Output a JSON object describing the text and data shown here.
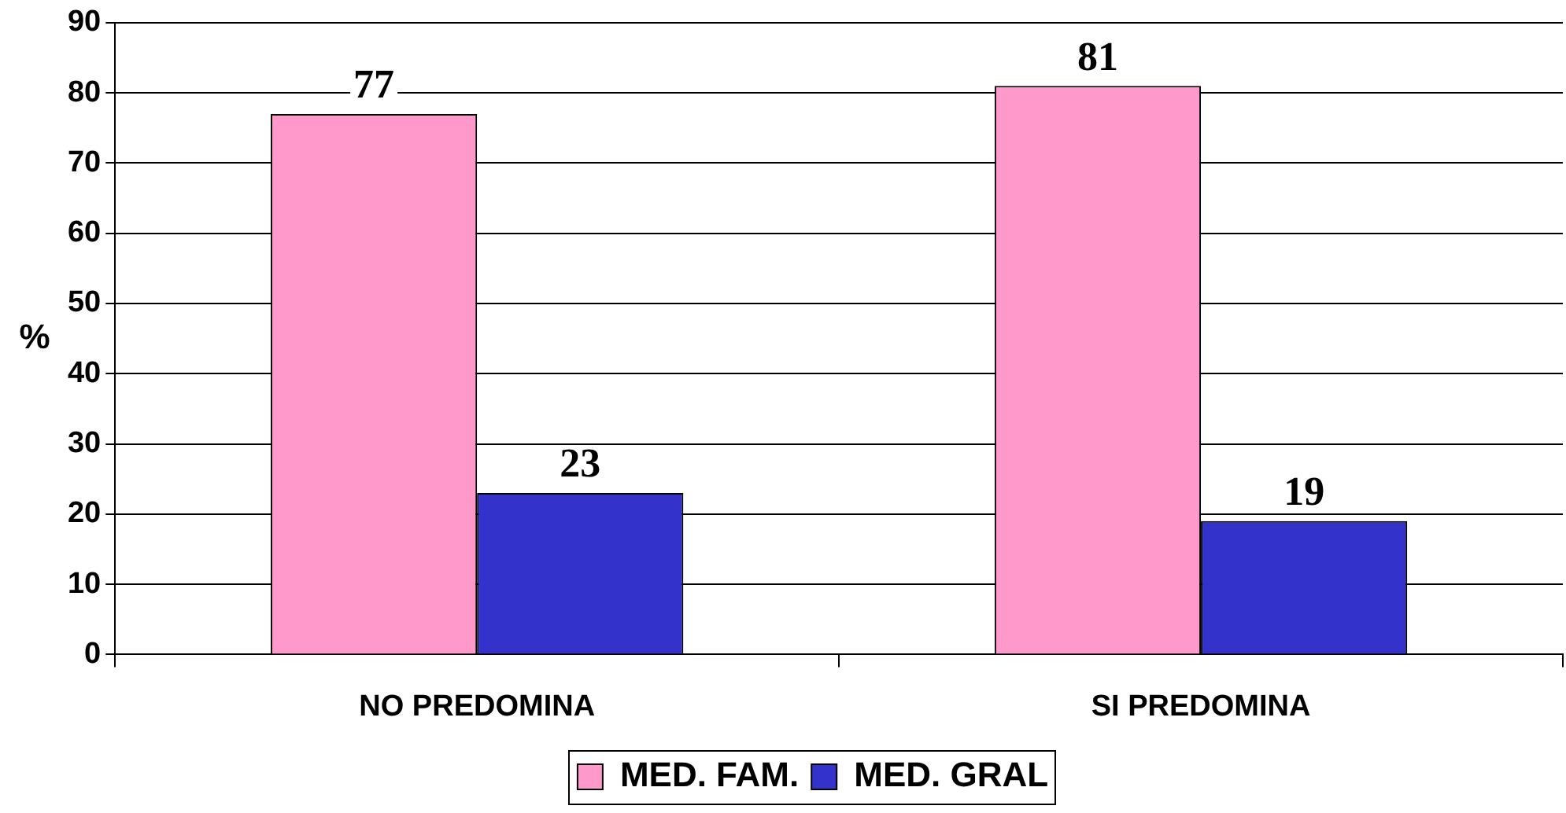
{
  "chart_data": {
    "type": "bar",
    "ylabel": "%",
    "categories": [
      "NO PREDOMINA",
      "SI PREDOMINA"
    ],
    "series": [
      {
        "name": "MED. FAM.",
        "color": "#ff99cc",
        "values": [
          77,
          81
        ]
      },
      {
        "name": "MED. GRAL",
        "color": "#3333cc",
        "values": [
          23,
          19
        ]
      }
    ],
    "ylim": [
      0,
      90
    ],
    "yticks": [
      0,
      10,
      20,
      30,
      40,
      50,
      60,
      70,
      80,
      90
    ],
    "grid": "y",
    "legend": "bottom",
    "data_labels": true
  }
}
